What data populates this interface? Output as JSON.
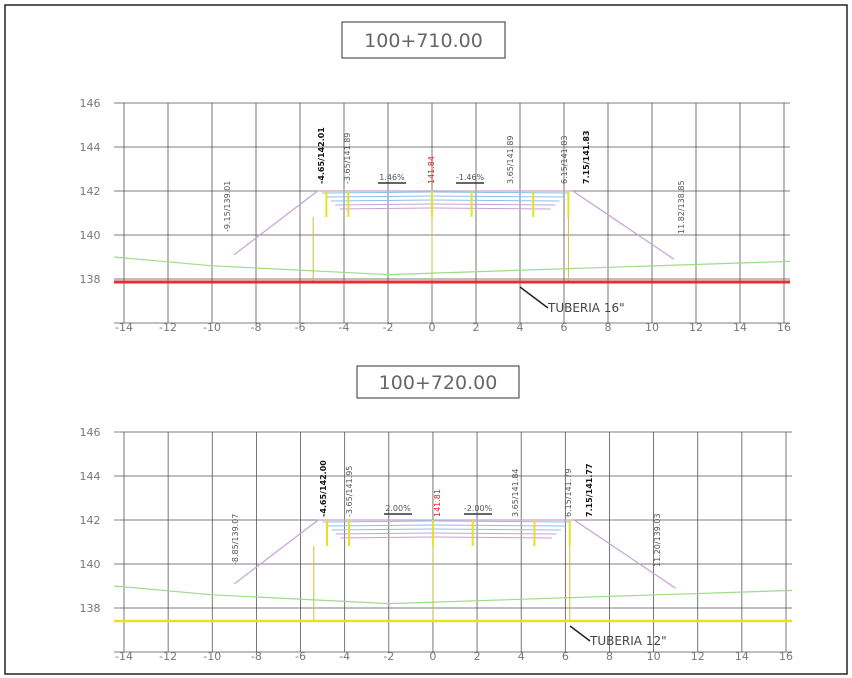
{
  "sections": [
    {
      "title": "100+710.00",
      "yticks": [
        146,
        144,
        142,
        140,
        138
      ],
      "xticks": [
        -14,
        -12,
        -10,
        -8,
        -6,
        -4,
        -2,
        0,
        2,
        4,
        6,
        8,
        10,
        12,
        14,
        16
      ],
      "annotations": [
        "-9.15/139.01",
        "-4.65/142.01",
        "-3.65/141.89",
        "141.84",
        "3.65/141.89",
        "6.15/141.83",
        "7.15/141.83",
        "11.82/138.85"
      ],
      "slopes": [
        "1.46%",
        "-1.46%"
      ],
      "pipe": "TUBERIA 16\""
    },
    {
      "title": "100+720.00",
      "yticks": [
        146,
        144,
        142,
        140,
        138
      ],
      "xticks": [
        -14,
        -12,
        -10,
        -8,
        -6,
        -4,
        -2,
        0,
        2,
        4,
        6,
        8,
        10,
        12,
        14,
        16
      ],
      "annotations": [
        "-8.85/139.07",
        "-4.65/142.00",
        "-3.65/141.95",
        "141.81",
        "3.65/141.84",
        "6.15/141.79",
        "7.15/141.77",
        "11.20/139.03"
      ],
      "slopes": [
        "2.00%",
        "-2.00%"
      ],
      "pipe": "TUBERIA 12\""
    }
  ]
}
